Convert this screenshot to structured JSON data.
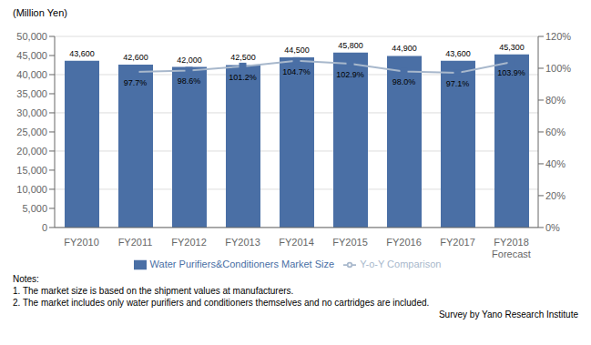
{
  "chart_data": {
    "type": "bar",
    "categories": [
      "FY2010",
      "FY2011",
      "FY2012",
      "FY2013",
      "FY2014",
      "FY2015",
      "FY2016",
      "FY2017",
      "FY2018\nForecast"
    ],
    "series": [
      {
        "name": "Water Purifiers&Conditioners Market Size",
        "type": "bar",
        "color": "#4a6fa5",
        "values": [
          43600,
          42600,
          42000,
          42500,
          44500,
          45800,
          44900,
          43600,
          45300
        ],
        "value_labels": [
          "43,600",
          "42,600",
          "42,000",
          "42,500",
          "44,500",
          "45,800",
          "44,900",
          "43,600",
          "45,300"
        ]
      },
      {
        "name": "Y-o-Y Comparison",
        "type": "line",
        "axis": "y2",
        "color": "#a8b8cc",
        "marker": "square",
        "marker_color": "#4a6fa5",
        "values": [
          null,
          97.7,
          98.6,
          101.2,
          104.7,
          102.9,
          98.0,
          97.1,
          103.9
        ],
        "value_labels": [
          null,
          "97.7%",
          "98.6%",
          "101.2%",
          "104.7%",
          "102.9%",
          "98.0%",
          "97.1%",
          "103.9%"
        ]
      }
    ],
    "ylabel": "(Million Yen)",
    "ylim": [
      0,
      50000
    ],
    "yticks": [
      0,
      {
        "value": 5000,
        "label": "5,000"
      },
      {
        "value": 10000,
        "label": "10,000"
      },
      {
        "value": 15000,
        "label": "15,000"
      },
      {
        "value": 20000,
        "label": "20,000"
      },
      {
        "value": 25000,
        "label": "25,000"
      },
      {
        "value": 30000,
        "label": "30,000"
      },
      {
        "value": 35000,
        "label": "35,000"
      },
      {
        "value": 40000,
        "label": "40,000"
      },
      {
        "value": 45000,
        "label": "45,000"
      },
      {
        "value": 50000,
        "label": "50,000"
      }
    ],
    "y2lim": [
      0,
      120
    ],
    "y2ticks": [
      {
        "value": 0,
        "label": "0%"
      },
      {
        "value": 20,
        "label": "20%"
      },
      {
        "value": 40,
        "label": "40%"
      },
      {
        "value": 60,
        "label": "60%"
      },
      {
        "value": 80,
        "label": "80%"
      },
      {
        "value": 100,
        "label": "100%"
      },
      {
        "value": 120,
        "label": "120%"
      }
    ],
    "grid": true,
    "legend": "bottom",
    "data_labels": true,
    "notes": [
      "Notes:",
      "1. The market size is based on the shipment values at manufacturers.",
      "2. The market includes only water purifiers and conditioners themselves and no cartridges are included."
    ],
    "source": "Survey by Yano Research Institute"
  }
}
